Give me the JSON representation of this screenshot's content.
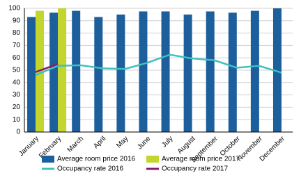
{
  "chart_data": {
    "type": "bar-line",
    "categories": [
      "January",
      "February",
      "March",
      "April",
      "May",
      "June",
      "July",
      "August",
      "September",
      "October",
      "November",
      "December"
    ],
    "series": [
      {
        "name": "Average room price 2016",
        "type": "bar",
        "color": "#1c5f9c",
        "values": [
          93,
          96.5,
          98,
          93,
          95,
          97.5,
          97.5,
          95,
          97.5,
          96.5,
          98,
          100
        ]
      },
      {
        "name": "Average room price 2017",
        "type": "bar",
        "color": "#c2d62e",
        "values": [
          98,
          100,
          null,
          null,
          null,
          null,
          null,
          null,
          null,
          null,
          null,
          null
        ]
      },
      {
        "name": "Occupancy rate 2016",
        "type": "line",
        "color": "#3fc0c0",
        "values": [
          46,
          53.5,
          54,
          51.5,
          51,
          56,
          62.5,
          59.5,
          58,
          52,
          53.5,
          48
        ]
      },
      {
        "name": "Occupancy rate 2017",
        "type": "line",
        "color": "#8c1a6a",
        "values": [
          48.5,
          55,
          null,
          null,
          null,
          null,
          null,
          null,
          null,
          null,
          null,
          null
        ]
      }
    ],
    "ylim": [
      0,
      100
    ],
    "yticks": [
      0,
      10,
      20,
      30,
      40,
      50,
      60,
      70,
      80,
      90,
      100
    ],
    "grid": true
  }
}
